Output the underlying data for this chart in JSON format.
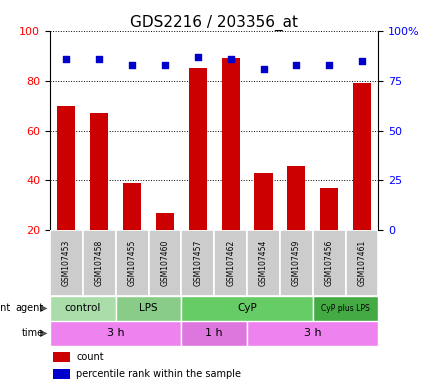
{
  "title": "GDS2216 / 203356_at",
  "samples": [
    "GSM107453",
    "GSM107458",
    "GSM107455",
    "GSM107460",
    "GSM107457",
    "GSM107462",
    "GSM107454",
    "GSM107459",
    "GSM107456",
    "GSM107461"
  ],
  "counts": [
    70,
    67,
    39,
    27,
    85,
    89,
    43,
    46,
    37,
    79
  ],
  "percentile_ranks": [
    86,
    86,
    83,
    83,
    87,
    86,
    81,
    83,
    83,
    85
  ],
  "ylim_left": [
    20,
    100
  ],
  "ylim_right": [
    0,
    100
  ],
  "yticks_left": [
    20,
    40,
    60,
    80,
    100
  ],
  "ytick_labels_right": [
    "0",
    "25",
    "50",
    "75",
    "100%"
  ],
  "yticks_right": [
    0,
    25,
    50,
    75,
    100
  ],
  "agent_groups": [
    {
      "label": "control",
      "start": 0,
      "end": 2,
      "color": "#aaddaa"
    },
    {
      "label": "LPS",
      "start": 2,
      "end": 4,
      "color": "#88cc88"
    },
    {
      "label": "CyP",
      "start": 4,
      "end": 8,
      "color": "#66cc66"
    },
    {
      "label": "CyP plus LPS",
      "start": 8,
      "end": 10,
      "color": "#44aa44"
    }
  ],
  "time_groups": [
    {
      "label": "3 h",
      "start": 0,
      "end": 4,
      "color": "#ee82ee"
    },
    {
      "label": "1 h",
      "start": 4,
      "end": 6,
      "color": "#dd77dd"
    },
    {
      "label": "3 h",
      "start": 6,
      "end": 10,
      "color": "#ee82ee"
    }
  ],
  "bar_color": "#cc0000",
  "dot_color": "#0000cc",
  "sample_box_color": "#cccccc",
  "title_fontsize": 11,
  "tick_label_fontsize": 8,
  "sample_fontsize": 5.5,
  "group_fontsize": 7.5,
  "legend_fontsize": 7
}
